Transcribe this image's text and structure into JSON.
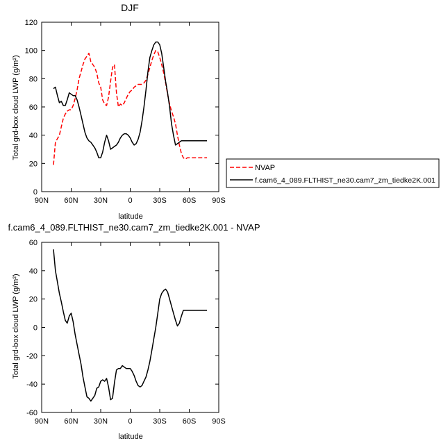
{
  "chart_data": [
    {
      "type": "line",
      "title": "DJF",
      "xlabel": "latitude",
      "ylabel": "Total grd-box cloud LWP (g/m²)",
      "xlim": [
        90,
        -90
      ],
      "ylim": [
        0,
        120
      ],
      "xticks": [
        90,
        60,
        30,
        0,
        -30,
        -60,
        -90
      ],
      "xticklabels": [
        "90N",
        "60N",
        "30N",
        "0",
        "30S",
        "60S",
        "90S"
      ],
      "yticks": [
        0,
        20,
        40,
        60,
        80,
        100,
        120
      ],
      "legend": "right",
      "series": [
        {
          "name": "NVAP",
          "color": "#ff0000",
          "dash": true,
          "x": [
            78,
            76,
            72,
            70,
            68,
            66,
            64,
            62,
            60,
            58,
            56,
            54,
            52,
            50,
            48,
            46,
            44,
            42,
            40,
            38,
            36,
            34,
            32,
            30,
            28,
            26,
            24,
            22,
            20,
            18,
            16,
            14,
            12,
            10,
            8,
            6,
            4,
            2,
            0,
            -2,
            -4,
            -6,
            -8,
            -10,
            -12,
            -14,
            -16,
            -18,
            -20,
            -22,
            -24,
            -26,
            -28,
            -30,
            -32,
            -34,
            -36,
            -38,
            -40,
            -42,
            -44,
            -46,
            -48,
            -50,
            -52,
            -54,
            -56,
            -58,
            -60,
            -62,
            -64,
            -66,
            -68,
            -70,
            -72,
            -74,
            -76,
            -78
          ],
          "y": [
            19,
            35,
            40,
            46,
            52,
            55,
            57,
            58,
            58,
            61,
            66,
            72,
            80,
            85,
            90,
            94,
            96,
            98,
            92,
            90,
            88,
            84,
            77,
            74,
            65,
            62,
            61,
            67,
            78,
            88,
            90,
            70,
            60,
            62,
            61,
            63,
            66,
            69,
            71,
            72,
            74,
            75,
            76,
            76,
            76,
            77,
            79,
            83,
            88,
            93,
            97,
            100,
            99,
            95,
            90,
            84,
            77,
            69,
            62,
            57,
            53,
            48,
            40,
            33,
            27,
            24,
            23,
            24,
            24,
            24,
            24,
            24,
            24,
            24,
            24,
            24,
            24,
            24
          ]
        },
        {
          "name": "f.cam6_4_089.FLTHIST_ne30.cam7_zm_tiedke2K.001",
          "color": "#000000",
          "dash": false,
          "x": [
            78,
            76,
            74,
            72,
            70,
            68,
            66,
            64,
            62,
            60,
            58,
            56,
            54,
            52,
            50,
            48,
            46,
            44,
            42,
            40,
            38,
            36,
            34,
            32,
            30,
            28,
            26,
            24,
            22,
            20,
            18,
            16,
            14,
            12,
            10,
            8,
            6,
            4,
            2,
            0,
            -2,
            -4,
            -6,
            -8,
            -10,
            -12,
            -14,
            -16,
            -18,
            -20,
            -22,
            -24,
            -26,
            -28,
            -30,
            -32,
            -34,
            -36,
            -38,
            -40,
            -42,
            -44,
            -46,
            -48,
            -50,
            -52,
            -54,
            -56,
            -58,
            -60,
            -62,
            -64,
            -66,
            -68,
            -70,
            -72,
            -74,
            -76,
            -78
          ],
          "y": [
            73,
            74,
            68,
            63,
            64,
            61,
            61,
            65,
            70,
            69,
            68,
            68,
            65,
            60,
            54,
            48,
            42,
            38,
            36,
            35,
            33,
            31,
            28,
            24,
            24,
            28,
            35,
            40,
            36,
            30,
            31,
            32,
            33,
            35,
            38,
            40,
            41,
            41,
            40,
            38,
            35,
            33,
            34,
            37,
            42,
            50,
            60,
            72,
            85,
            95,
            100,
            104,
            106,
            106,
            104,
            98,
            88,
            78,
            70,
            60,
            48,
            40,
            33,
            34,
            35,
            36,
            36,
            36,
            36,
            36,
            36,
            36,
            36,
            36,
            36,
            36,
            36,
            36,
            36
          ]
        }
      ]
    },
    {
      "type": "line",
      "title": "f.cam6_4_089.FLTHIST_ne30.cam7_zm_tiedke2K.001 - NVAP",
      "xlabel": "latitude",
      "ylabel": "Total grd-box cloud LWP (g/m²)",
      "xlim": [
        90,
        -90
      ],
      "ylim": [
        -60,
        60
      ],
      "xticks": [
        90,
        60,
        30,
        0,
        -30,
        -60,
        -90
      ],
      "xticklabels": [
        "90N",
        "60N",
        "30N",
        "0",
        "30S",
        "60S",
        "90S"
      ],
      "yticks": [
        -60,
        -40,
        -20,
        0,
        20,
        40,
        60
      ],
      "series": [
        {
          "name": "",
          "color": "#000000",
          "dash": false,
          "x": [
            78,
            76,
            74,
            72,
            70,
            68,
            66,
            64,
            62,
            60,
            58,
            56,
            54,
            52,
            50,
            48,
            46,
            44,
            42,
            40,
            38,
            36,
            34,
            32,
            30,
            28,
            26,
            24,
            22,
            20,
            18,
            16,
            14,
            12,
            10,
            8,
            6,
            4,
            2,
            0,
            -2,
            -4,
            -6,
            -8,
            -10,
            -12,
            -14,
            -16,
            -18,
            -20,
            -22,
            -24,
            -26,
            -28,
            -30,
            -32,
            -34,
            -36,
            -38,
            -40,
            -42,
            -44,
            -46,
            -48,
            -50,
            -52,
            -54,
            -56,
            -58,
            -60,
            -62,
            -64,
            -66,
            -68,
            -70,
            -72,
            -74,
            -76,
            -78
          ],
          "y": [
            55,
            40,
            32,
            24,
            18,
            11,
            5,
            3,
            8,
            10,
            4,
            -5,
            -12,
            -19,
            -26,
            -35,
            -42,
            -49,
            -50,
            -52,
            -50,
            -48,
            -43,
            -42,
            -38,
            -37,
            -38,
            -36,
            -42,
            -51,
            -50,
            -39,
            -30,
            -29,
            -29,
            -27,
            -28,
            -29,
            -29,
            -29,
            -31,
            -34,
            -38,
            -41,
            -42,
            -41,
            -38,
            -35,
            -30,
            -24,
            -16,
            -8,
            0,
            10,
            20,
            24,
            26,
            27,
            25,
            20,
            15,
            10,
            5,
            1,
            3,
            8,
            12,
            12,
            12,
            12,
            12,
            12,
            12,
            12,
            12,
            12,
            12,
            12,
            12
          ]
        }
      ]
    }
  ]
}
